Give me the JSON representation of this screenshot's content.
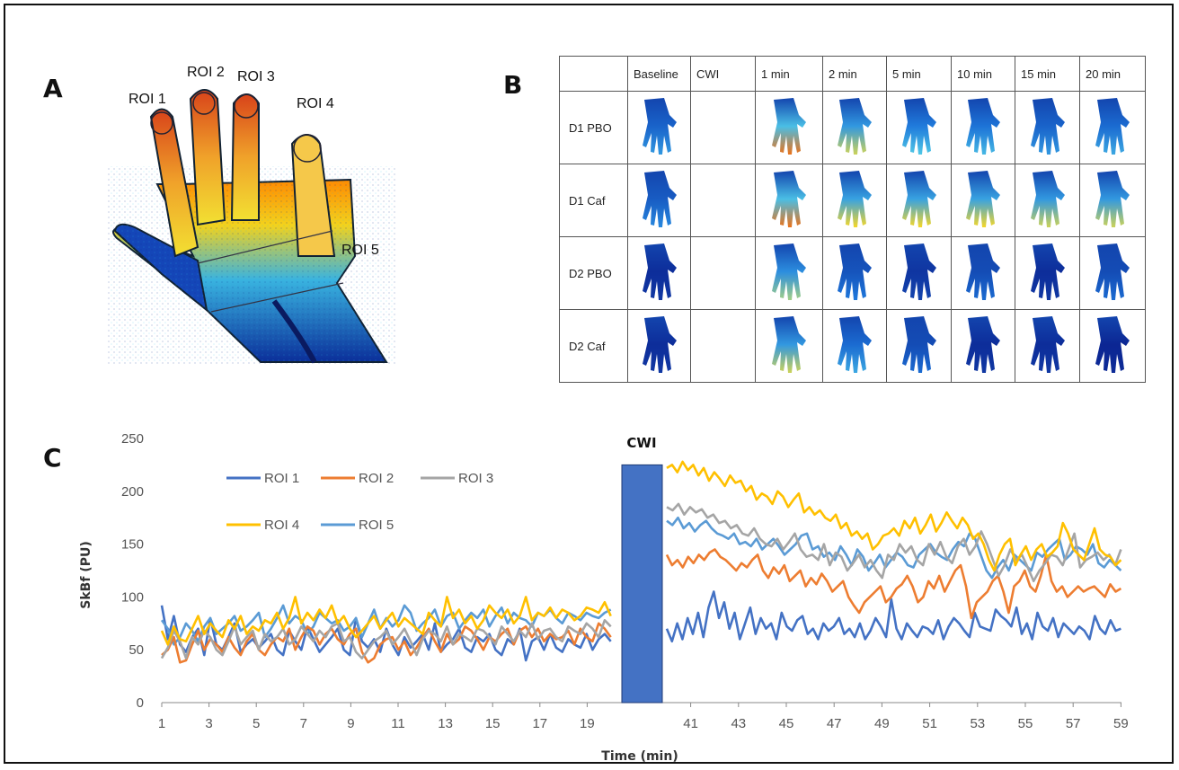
{
  "panels": {
    "a": "A",
    "b": "B",
    "c": "C"
  },
  "panel_a": {
    "roi_labels": [
      "ROI 1",
      "ROI 2",
      "ROI 3",
      "ROI 4",
      "ROI 5"
    ]
  },
  "panel_b": {
    "columns": [
      "",
      "Baseline",
      "CWI",
      "1 min",
      "2 min",
      "5 min",
      "10 min",
      "15 min",
      "20 min"
    ],
    "rows": [
      "D1 PBO",
      "D1 Caf",
      "D2 PBO",
      "D2 Caf"
    ]
  },
  "colors": {
    "roi1": "#4472C4",
    "roi2": "#ED7D31",
    "roi3": "#A5A5A5",
    "roi4": "#FFC000",
    "roi5": "#5B9BD5",
    "cwi_bar": "#4472C4"
  },
  "chart_data": {
    "type": "line",
    "title": "",
    "xlabel": "Time (min)",
    "ylabel": "SkBf (PU)",
    "ylim": [
      0,
      250
    ],
    "yticks": [
      0,
      50,
      100,
      150,
      200,
      250
    ],
    "xticks_left": [
      1,
      3,
      5,
      7,
      9,
      11,
      13,
      15,
      17,
      19
    ],
    "xticks_right": [
      41,
      43,
      45,
      47,
      49,
      51,
      53,
      55,
      57,
      59
    ],
    "cwi_label": "CWI",
    "cwi_bar_value": 225,
    "legend_placement": "top-left",
    "segments": {
      "pre": {
        "x_start": 1,
        "x_end": 20
      },
      "post": {
        "x_start": 40,
        "x_end": 59
      }
    },
    "series": [
      {
        "name": "ROI 1",
        "pre": [
          92,
          60,
          82,
          55,
          48,
          62,
          70,
          45,
          80,
          55,
          50,
          62,
          75,
          48,
          55,
          60,
          52,
          58,
          65,
          50,
          45,
          68,
          58,
          50,
          72,
          60,
          48,
          55,
          62,
          70,
          50,
          45,
          80,
          58,
          52,
          60,
          48,
          70,
          55,
          45,
          62,
          52,
          58,
          65,
          50,
          75,
          48,
          55,
          60,
          70,
          52,
          48,
          62,
          58,
          65,
          50,
          45,
          60,
          55,
          70,
          40,
          58,
          62,
          50,
          65,
          52,
          48,
          60,
          55,
          52,
          65,
          50,
          60,
          65,
          58
        ],
        "post": [
          70,
          58,
          75,
          60,
          80,
          65,
          85,
          62,
          90,
          105,
          80,
          95,
          70,
          85,
          60,
          75,
          90,
          65,
          80,
          70,
          75,
          60,
          85,
          72,
          68,
          78,
          82,
          65,
          70,
          60,
          75,
          68,
          72,
          80,
          65,
          70,
          62,
          75,
          60,
          68,
          80,
          72,
          62,
          98,
          70,
          60,
          75,
          68,
          62,
          72,
          70,
          65,
          78,
          60,
          72,
          80,
          75,
          68,
          62,
          85,
          72,
          70,
          68,
          88,
          82,
          78,
          72,
          90,
          65,
          75,
          60,
          85,
          72,
          68,
          80,
          62,
          75,
          70,
          65,
          72,
          68,
          60,
          82,
          70,
          65,
          78,
          68,
          70
        ]
      },
      {
        "name": "ROI 2",
        "pre": [
          45,
          50,
          62,
          38,
          40,
          55,
          68,
          50,
          60,
          55,
          48,
          62,
          52,
          45,
          58,
          65,
          50,
          45,
          55,
          62,
          58,
          70,
          50,
          62,
          72,
          68,
          55,
          65,
          70,
          60,
          55,
          65,
          70,
          48,
          38,
          42,
          55,
          60,
          62,
          50,
          58,
          45,
          52,
          62,
          70,
          58,
          48,
          65,
          55,
          60,
          72,
          68,
          60,
          50,
          62,
          58,
          65,
          70,
          55,
          68,
          72,
          62,
          70,
          58,
          65,
          60,
          62,
          68,
          55,
          70,
          62,
          58,
          75,
          70,
          62
        ],
        "post": [
          140,
          130,
          135,
          128,
          138,
          132,
          140,
          135,
          142,
          145,
          138,
          135,
          130,
          125,
          132,
          128,
          135,
          140,
          125,
          118,
          128,
          122,
          130,
          115,
          120,
          125,
          110,
          118,
          112,
          122,
          115,
          105,
          110,
          115,
          100,
          92,
          85,
          95,
          100,
          105,
          110,
          95,
          100,
          108,
          112,
          120,
          110,
          95,
          100,
          115,
          108,
          120,
          105,
          115,
          125,
          130,
          110,
          80,
          95,
          100,
          105,
          115,
          120,
          105,
          85,
          110,
          115,
          125,
          110,
          105,
          120,
          140,
          115,
          105,
          110,
          100,
          105,
          110,
          105,
          108,
          110,
          105,
          100,
          112,
          105,
          108
        ]
      },
      {
        "name": "ROI 3",
        "pre": [
          42,
          52,
          68,
          58,
          42,
          62,
          55,
          68,
          62,
          50,
          45,
          58,
          72,
          55,
          62,
          68,
          50,
          65,
          58,
          62,
          70,
          55,
          60,
          72,
          65,
          58,
          68,
          62,
          72,
          75,
          58,
          62,
          48,
          42,
          50,
          58,
          62,
          68,
          55,
          62,
          70,
          58,
          45,
          60,
          68,
          65,
          58,
          72,
          55,
          65,
          62,
          58,
          70,
          68,
          62,
          55,
          72,
          65,
          58,
          68,
          62,
          75,
          60,
          68,
          70,
          62,
          58,
          72,
          68,
          65,
          75,
          70,
          62,
          78,
          72
        ],
        "post": [
          185,
          182,
          188,
          178,
          185,
          180,
          183,
          175,
          178,
          170,
          172,
          165,
          168,
          160,
          158,
          165,
          155,
          150,
          148,
          155,
          145,
          152,
          160,
          145,
          138,
          140,
          135,
          150,
          130,
          142,
          138,
          125,
          132,
          140,
          128,
          135,
          125,
          118,
          140,
          135,
          150,
          142,
          148,
          135,
          130,
          150,
          140,
          152,
          138,
          132,
          148,
          155,
          140,
          148,
          162,
          150,
          135,
          120,
          130,
          145,
          135,
          140,
          128,
          115,
          125,
          132,
          140,
          138,
          130,
          145,
          160,
          128,
          135,
          138,
          142,
          135,
          140,
          130,
          145
        ]
      },
      {
        "name": "ROI 4",
        "pre": [
          68,
          55,
          72,
          60,
          58,
          70,
          82,
          65,
          75,
          68,
          62,
          78,
          70,
          82,
          65,
          72,
          68,
          78,
          75,
          85,
          70,
          80,
          100,
          75,
          85,
          78,
          88,
          80,
          92,
          75,
          82,
          70,
          62,
          68,
          75,
          82,
          70,
          78,
          85,
          72,
          80,
          75,
          70,
          65,
          85,
          78,
          72,
          100,
          80,
          88,
          75,
          82,
          70,
          78,
          92,
          85,
          80,
          88,
          75,
          82,
          100,
          78,
          85,
          82,
          90,
          80,
          88,
          85,
          78,
          82,
          90,
          88,
          85,
          95,
          82
        ],
        "post": [
          222,
          225,
          218,
          228,
          220,
          225,
          215,
          222,
          210,
          218,
          212,
          205,
          215,
          208,
          210,
          200,
          205,
          192,
          198,
          195,
          188,
          200,
          195,
          185,
          192,
          198,
          180,
          185,
          178,
          182,
          175,
          172,
          178,
          165,
          170,
          158,
          162,
          155,
          160,
          145,
          150,
          158,
          160,
          165,
          158,
          172,
          165,
          175,
          160,
          168,
          178,
          162,
          170,
          180,
          172,
          165,
          175,
          168,
          155,
          160,
          150,
          135,
          125,
          140,
          150,
          155,
          130,
          140,
          148,
          135,
          145,
          150,
          138,
          142,
          148,
          170,
          160,
          145,
          140,
          135,
          150,
          165,
          145,
          140,
          138,
          130,
          135
        ]
      },
      {
        "name": "ROI 5",
        "pre": [
          78,
          70,
          55,
          62,
          75,
          68,
          58,
          72,
          80,
          65,
          70,
          75,
          82,
          68,
          72,
          78,
          85,
          62,
          70,
          80,
          92,
          75,
          82,
          78,
          65,
          72,
          85,
          80,
          75,
          78,
          68,
          72,
          80,
          62,
          75,
          88,
          70,
          80,
          72,
          78,
          92,
          85,
          68,
          75,
          80,
          88,
          72,
          82,
          85,
          70,
          78,
          85,
          80,
          88,
          72,
          82,
          90,
          75,
          85,
          80,
          78,
          72,
          85,
          82,
          88,
          80,
          75,
          85,
          82,
          78,
          85,
          82,
          80,
          85,
          88
        ],
        "post": [
          172,
          168,
          175,
          165,
          170,
          162,
          168,
          172,
          165,
          160,
          158,
          155,
          160,
          150,
          152,
          148,
          155,
          145,
          150,
          155,
          148,
          140,
          145,
          150,
          158,
          160,
          145,
          148,
          138,
          142,
          135,
          148,
          140,
          130,
          145,
          138,
          125,
          132,
          140,
          128,
          135,
          142,
          138,
          130,
          128,
          140,
          145,
          150,
          142,
          138,
          135,
          145,
          152,
          148,
          160,
          155,
          140,
          125,
          118,
          128,
          135,
          125,
          140,
          135,
          130,
          125,
          142,
          138,
          145,
          150,
          155,
          135,
          140,
          148,
          145,
          140,
          150,
          132,
          128,
          135,
          130,
          125
        ]
      }
    ]
  }
}
